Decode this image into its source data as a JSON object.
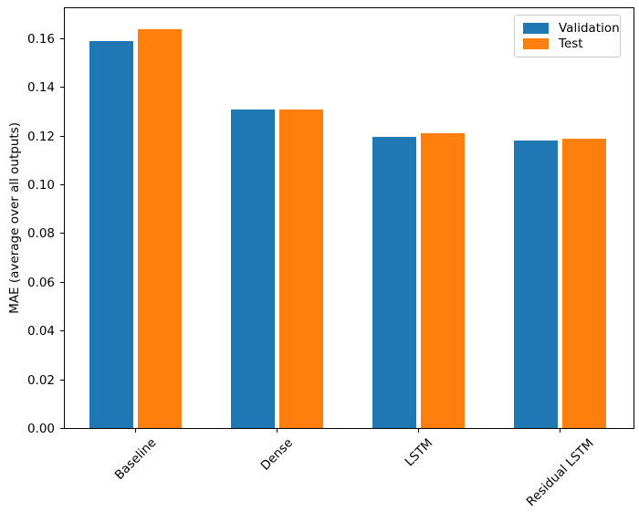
{
  "chart_data": {
    "type": "bar",
    "title": "",
    "categories": [
      "Baseline",
      "Dense",
      "LSTM",
      "Residual LSTM"
    ],
    "series": [
      {
        "name": "Validation",
        "color": "#1f77b4",
        "values": [
          0.159,
          0.131,
          0.12,
          0.1185
        ]
      },
      {
        "name": "Test",
        "color": "#ff7f0e",
        "values": [
          0.164,
          0.131,
          0.1215,
          0.119
        ]
      }
    ],
    "xlabel": "",
    "ylabel": "MAE (average over all outputs)",
    "ylim": [
      0,
      0.173
    ],
    "yticks": [
      0.0,
      0.02,
      0.04,
      0.06,
      0.08,
      0.1,
      0.12,
      0.14,
      0.16
    ],
    "ytick_labels": [
      "0.00",
      "0.02",
      "0.04",
      "0.06",
      "0.08",
      "0.10",
      "0.12",
      "0.14",
      "0.16"
    ],
    "x_tick_rotation": 45,
    "grid": false,
    "legend_position": "upper right"
  }
}
